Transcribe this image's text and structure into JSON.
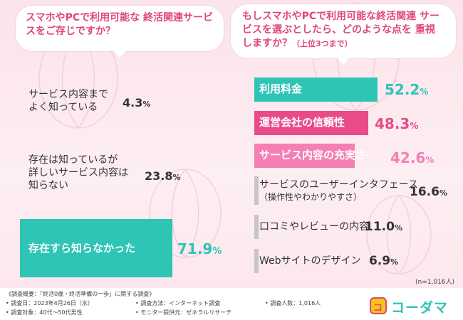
{
  "questions": {
    "q1": "スマホやPCで利用可能な 終活関連サービスをご存じですか？",
    "q2": "もしスマホやPCで利用可能な終活関連 サービスを選ぶとしたら、どのような点を 重視しますか？",
    "q2_sub": "（上位3つまで）"
  },
  "chart_data": [
    {
      "type": "bar",
      "orientation": "horizontal",
      "categories": [
        "サービス内容までよく知っている",
        "存在は知っているが詳しいサービス内容は知らない",
        "存在すら知らなかった"
      ],
      "values": [
        4.3,
        23.8,
        71.9
      ],
      "unit": "%",
      "highlight_color": "#2ec4b6",
      "base_color": "#c6c6c6"
    },
    {
      "type": "bar",
      "orientation": "horizontal",
      "categories": [
        "利用料金",
        "運営会社の信頼性",
        "サービス内容の充実さ",
        "サービスのユーザーインタフェース（操作性やわかりやすさ）",
        "口コミやレビューの内容",
        "Webサイトのデザイン"
      ],
      "values": [
        52.2,
        48.3,
        42.6,
        16.6,
        11.0,
        6.9
      ],
      "unit": "%",
      "colors": [
        "#2ec4b6",
        "#e94b8a",
        "#f57fb4",
        "#c6c6c6",
        "#c6c6c6",
        "#c6c6c6"
      ],
      "note": "(n=1,016人)"
    }
  ],
  "left": {
    "labels": [
      [
        "サービス内容まで",
        "よく知っている"
      ],
      [
        "存在は知っているが",
        "詳しいサービス内容は",
        "知らない"
      ],
      [
        "存在すら知らなかった"
      ]
    ],
    "values": [
      "4.3",
      "23.8",
      "71.9"
    ]
  },
  "right": {
    "labels": [
      [
        "利用料金"
      ],
      [
        "運営会社の信頼性"
      ],
      [
        "サービス内容の充実さ"
      ],
      [
        "サービスのユーザーインタフェース",
        "（操作性やわかりやすさ）"
      ],
      [
        "口コミやレビューの内容"
      ],
      [
        "Webサイトのデザイン"
      ]
    ],
    "values": [
      "52.2",
      "48.3",
      "42.6",
      "16.6",
      "11.0",
      "6.9"
    ]
  },
  "pct": "%",
  "footer": {
    "overview": "《調査概要：「終活0歳・終活準備の一歩」に関する調査》",
    "date": "• 調査日：2023年4月26日（水）",
    "method": "• 調査方法：インターネット調査",
    "count": "• 調査人数：1,016人",
    "target": "• 調査対象：40代〜50代男性",
    "provider": "• モニター提供元：ゼネラルリサーチ"
  },
  "logo": {
    "mark": "コ",
    "text": "コーダマ"
  }
}
